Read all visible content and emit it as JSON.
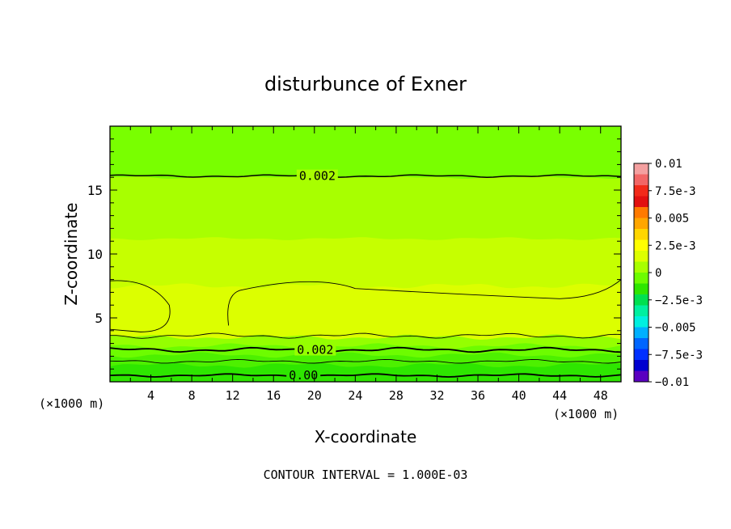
{
  "chart_data": {
    "type": "heatmap",
    "title": "disturbunce of Exner",
    "xlabel": "X-coordinate",
    "ylabel": "Z-coordinate",
    "x_unit_left": "(×1000 m)",
    "x_unit_right": "(×1000 m)",
    "xlim": [
      0,
      50
    ],
    "ylim": [
      0,
      20
    ],
    "x_ticks": [
      4,
      8,
      12,
      16,
      20,
      24,
      28,
      32,
      36,
      40,
      44,
      48
    ],
    "x_tick_labels": [
      "4",
      "8",
      "12",
      "16",
      "20",
      "24",
      "28",
      "32",
      "36",
      "40",
      "44",
      "48"
    ],
    "y_ticks": [
      5,
      10,
      15
    ],
    "y_tick_labels": [
      "5",
      "10",
      "15"
    ],
    "footer": "CONTOUR INTERVAL = 1.000E-03",
    "contour_interval": 0.001,
    "colorbar": {
      "levels": [
        0.01,
        0.0075,
        0.005,
        0.0025,
        0,
        -0.0025,
        -0.005,
        -0.0075,
        -0.01
      ],
      "labels": [
        "0.01",
        "7.5e-3",
        "0.005",
        "2.5e-3",
        "0",
        "−2.5e-3",
        "−0.005",
        "−7.5e-3",
        "−0.01"
      ],
      "colors": [
        "#f4a0a0",
        "#f26666",
        "#f22a1a",
        "#e21010",
        "#ff7a00",
        "#ffa600",
        "#ffd600",
        "#ffff00",
        "#ddff00",
        "#a8ff00",
        "#6dfc00",
        "#2ee600",
        "#00e050",
        "#00f0a0",
        "#00f0e0",
        "#00b0ff",
        "#0066ff",
        "#0030ff",
        "#0000d0",
        "#5a00c0"
      ]
    },
    "layers": [
      {
        "z_top": 20,
        "value_range": [
          0.0015,
          0.002
        ],
        "color": "#79ff00"
      },
      {
        "z_top": 16,
        "value_range": [
          0.002,
          0.0025
        ],
        "color": "#a8ff00"
      },
      {
        "z_top": 11.2,
        "value_range": [
          0.0025,
          0.003
        ],
        "color": "#c6ff00"
      },
      {
        "z_top": 7.5,
        "value_range": [
          0.003,
          0.0035
        ],
        "color": "#dcff00"
      },
      {
        "z_top": 3.5,
        "value_range": [
          0.0015,
          0.0025
        ],
        "color": "#95ff00"
      },
      {
        "z_top": 2.8,
        "value_range": [
          0.001,
          0.0015
        ],
        "color": "#6dfc00"
      },
      {
        "z_top": 2.1,
        "value_range": [
          0.0005,
          0.001
        ],
        "color": "#4df000"
      },
      {
        "z_top": 1.3,
        "value_range": [
          0,
          0.0005
        ],
        "color": "#2ee600"
      }
    ],
    "contour_labels": [
      {
        "text": "0.002",
        "x": 18.5,
        "z": 16.1
      },
      {
        "text": "0.002",
        "x": 18.3,
        "z": 2.5
      },
      {
        "text": "0.00",
        "x": 17.5,
        "z": 0.5
      }
    ]
  }
}
